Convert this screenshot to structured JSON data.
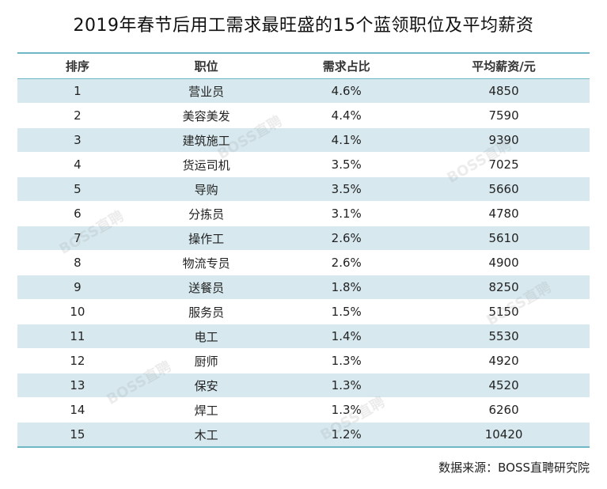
{
  "title": "2019年春节后用工需求最旺盛的15个蓝领职位及平均薪资",
  "table": {
    "headers": [
      "排序",
      "职位",
      "需求占比",
      "平均薪资/元"
    ],
    "rows": [
      {
        "rank": "1",
        "job": "营业员",
        "share": "4.6%",
        "salary": "4850"
      },
      {
        "rank": "2",
        "job": "美容美发",
        "share": "4.4%",
        "salary": "7590"
      },
      {
        "rank": "3",
        "job": "建筑施工",
        "share": "4.1%",
        "salary": "9390"
      },
      {
        "rank": "4",
        "job": "货运司机",
        "share": "3.5%",
        "salary": "7025"
      },
      {
        "rank": "5",
        "job": "导购",
        "share": "3.5%",
        "salary": "5660"
      },
      {
        "rank": "6",
        "job": "分拣员",
        "share": "3.1%",
        "salary": "4780"
      },
      {
        "rank": "7",
        "job": "操作工",
        "share": "2.6%",
        "salary": "5610"
      },
      {
        "rank": "8",
        "job": "物流专员",
        "share": "2.6%",
        "salary": "4900"
      },
      {
        "rank": "9",
        "job": "送餐员",
        "share": "1.8%",
        "salary": "8250"
      },
      {
        "rank": "10",
        "job": "服务员",
        "share": "1.5%",
        "salary": "5150"
      },
      {
        "rank": "11",
        "job": "电工",
        "share": "1.4%",
        "salary": "5530"
      },
      {
        "rank": "12",
        "job": "厨师",
        "share": "1.3%",
        "salary": "4920"
      },
      {
        "rank": "13",
        "job": "保安",
        "share": "1.3%",
        "salary": "4520"
      },
      {
        "rank": "14",
        "job": "焊工",
        "share": "1.3%",
        "salary": "6260"
      },
      {
        "rank": "15",
        "job": "木工",
        "share": "1.2%",
        "salary": "10420"
      }
    ]
  },
  "watermark_text": "BOSS直聘",
  "source": "数据来源：BOSS直聘研究院",
  "colors": {
    "accent_line": "#6fb7c4",
    "stripe": "#d7e9ef"
  }
}
